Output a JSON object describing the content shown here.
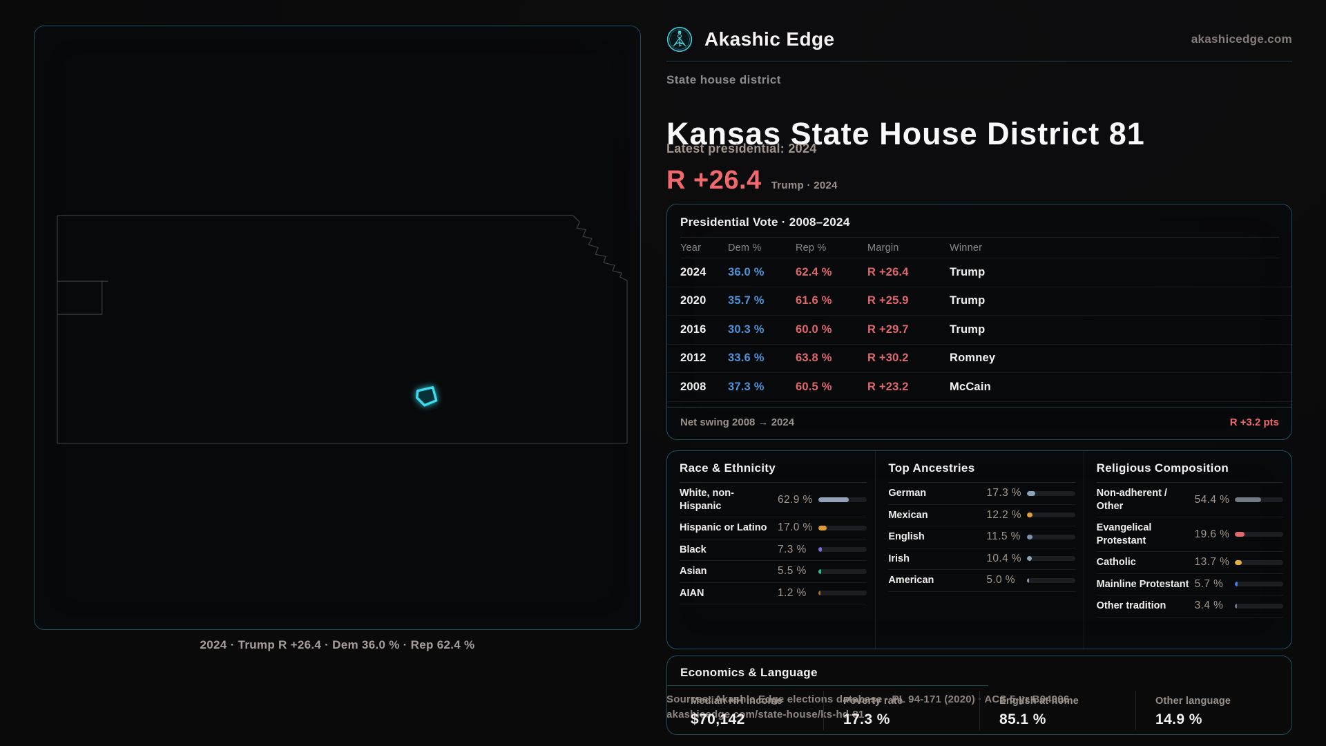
{
  "colors": {
    "border_teal": "#1c515c",
    "accent_cyan": "#36d8ea",
    "dem_blue": "#4e93d9",
    "rep_red": "#e0686d",
    "margin_red": "#f2696d",
    "map_outline": "#3b3b3e"
  },
  "brand": {
    "name": "Akashic Edge",
    "domain": "akashicedge.com",
    "logo_icon": "akashic-edge-emblem"
  },
  "header": {
    "kicker": "State house district",
    "title": "Kansas State House District 81",
    "latest_label": "Latest presidential: 2024",
    "margin_value": "R +26.4",
    "margin_context": "Trump · 2024"
  },
  "map": {
    "caption": "2024 · Trump R +26.4 · Dem 36.0 % · Rep 62.4 %"
  },
  "vote_table": {
    "title": "Presidential Vote · 2008–2024",
    "columns": [
      "Year",
      "Dem %",
      "Rep %",
      "Margin",
      "Winner"
    ],
    "rows": [
      {
        "year": "2024",
        "dem": "36.0 %",
        "rep": "62.4 %",
        "margin": "R +26.4",
        "winner": "Trump"
      },
      {
        "year": "2020",
        "dem": "35.7 %",
        "rep": "61.6 %",
        "margin": "R +25.9",
        "winner": "Trump"
      },
      {
        "year": "2016",
        "dem": "30.3 %",
        "rep": "60.0 %",
        "margin": "R +29.7",
        "winner": "Trump"
      },
      {
        "year": "2012",
        "dem": "33.6 %",
        "rep": "63.8 %",
        "margin": "R +30.2",
        "winner": "Romney"
      },
      {
        "year": "2008",
        "dem": "37.3 %",
        "rep": "60.5 %",
        "margin": "R +23.2",
        "winner": "McCain"
      }
    ],
    "net_swing_label": "Net swing 2008 → 2024",
    "net_swing_value": "R +3.2 pts"
  },
  "demographics": [
    {
      "id": "race-ethnicity",
      "title": "Race & Ethnicity",
      "rows": [
        {
          "label": "White, non-Hispanic",
          "value": "62.9 %",
          "pct": 62.9,
          "color": "#95a3ba"
        },
        {
          "label": "Hispanic or Latino",
          "value": "17.0 %",
          "pct": 17.0,
          "color": "#dd9c33"
        },
        {
          "label": "Black",
          "value": "7.3 %",
          "pct": 7.3,
          "color": "#7e6ada"
        },
        {
          "label": "Asian",
          "value": "5.5 %",
          "pct": 5.5,
          "color": "#2dbd92"
        },
        {
          "label": "AIAN",
          "value": "1.2 %",
          "pct": 1.2,
          "color": "#b06a28"
        }
      ]
    },
    {
      "id": "top-ancestries",
      "title": "Top Ancestries",
      "rows": [
        {
          "label": "German",
          "value": "17.3 %",
          "pct": 17.3,
          "color": "#8ba3bd"
        },
        {
          "label": "Mexican",
          "value": "12.2 %",
          "pct": 12.2,
          "color": "#e0a033"
        },
        {
          "label": "English",
          "value": "11.5 %",
          "pct": 11.5,
          "color": "#7e93a9"
        },
        {
          "label": "Irish",
          "value": "10.4 %",
          "pct": 10.4,
          "color": "#8aa2ba"
        },
        {
          "label": "American",
          "value": "5.0 %",
          "pct": 5.0,
          "color": "#8b97a5"
        }
      ]
    },
    {
      "id": "religious-composition",
      "title": "Religious Composition",
      "rows": [
        {
          "label": "Non-adherent / Other",
          "value": "54.4 %",
          "pct": 54.4,
          "color": "#737a87"
        },
        {
          "label": "Evangelical Protestant",
          "value": "19.6 %",
          "pct": 19.6,
          "color": "#e2696d"
        },
        {
          "label": "Catholic",
          "value": "13.7 %",
          "pct": 13.7,
          "color": "#e0b33a"
        },
        {
          "label": "Mainline Protestant",
          "value": "5.7 %",
          "pct": 5.7,
          "color": "#4779e8"
        },
        {
          "label": "Other tradition",
          "value": "3.4 %",
          "pct": 3.4,
          "color": "#6f7683"
        }
      ]
    }
  ],
  "economics": {
    "title": "Economics & Language",
    "stats": [
      {
        "label": "Median HH income",
        "value": "$70,142"
      },
      {
        "label": "Poverty rate",
        "value": "17.3 %"
      },
      {
        "label": "English at home",
        "value": "85.1 %"
      },
      {
        "label": "Other language",
        "value": "14.9 %"
      }
    ]
  },
  "footer": {
    "line1": "Sources: Akashic Edge elections database · PL 94-171 (2020) · ACS 5-yr B04006",
    "line2": "akashicedge.com/state-house/ks-hd-81"
  }
}
